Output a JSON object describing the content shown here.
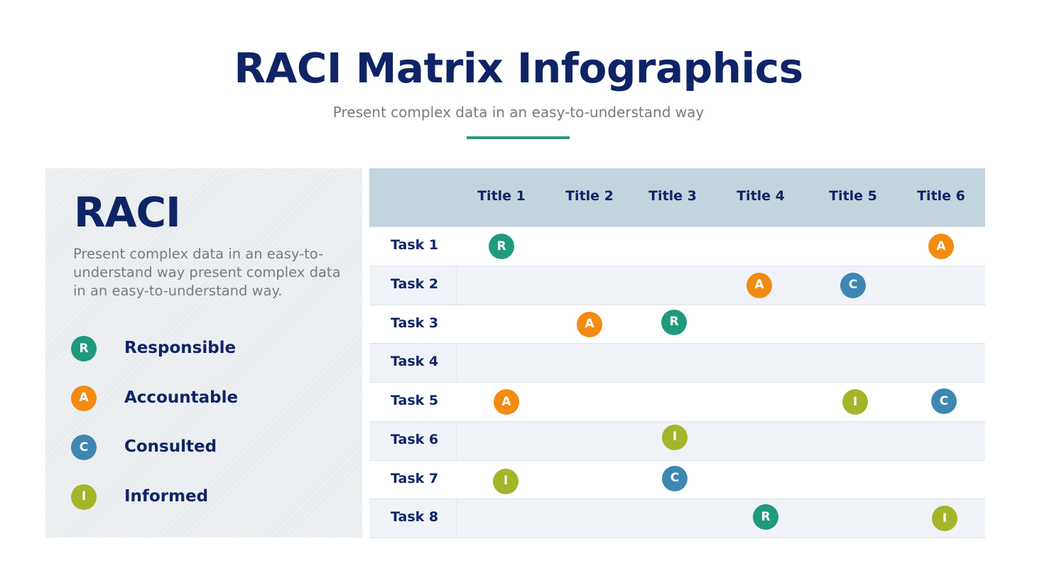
{
  "header": {
    "title": "RACI Matrix Infographics",
    "subtitle": "Present complex data in an easy-to-understand way",
    "accent_color": "#2a9a7e"
  },
  "left_panel": {
    "heading": "RACI",
    "description": "Present complex data in an easy-to-understand way present complex data in an easy-to-understand way.",
    "legend": [
      {
        "code": "R",
        "label": "Responsible",
        "color": "#1f9a7d"
      },
      {
        "code": "A",
        "label": "Accountable",
        "color": "#f28b12"
      },
      {
        "code": "C",
        "label": "Consulted",
        "color": "#3e87b2"
      },
      {
        "code": "I",
        "label": "Informed",
        "color": "#a4b52a"
      }
    ]
  },
  "matrix": {
    "columns": [
      "Title 1",
      "Title 2",
      "Title 3",
      "Title 4",
      "Title 5",
      "Title 6"
    ],
    "rows": [
      {
        "task": "Task 1",
        "cells": [
          "R",
          "",
          "",
          "",
          "",
          "A"
        ]
      },
      {
        "task": "Task 2",
        "cells": [
          "",
          "",
          "",
          "A",
          "C",
          ""
        ]
      },
      {
        "task": "Task 3",
        "cells": [
          "",
          "A",
          "R",
          "",
          "",
          ""
        ]
      },
      {
        "task": "Task 4",
        "cells": [
          "",
          "",
          "",
          "",
          "",
          ""
        ]
      },
      {
        "task": "Task 5",
        "cells": [
          "A",
          "",
          "",
          "",
          "I",
          "C"
        ]
      },
      {
        "task": "Task 6",
        "cells": [
          "",
          "",
          "I",
          "",
          "",
          ""
        ]
      },
      {
        "task": "Task 7",
        "cells": [
          "I",
          "",
          "C",
          "",
          "",
          ""
        ]
      },
      {
        "task": "Task 8",
        "cells": [
          "",
          "",
          "",
          "R",
          "",
          "I"
        ]
      }
    ]
  },
  "chart_data": {
    "type": "table",
    "title": "RACI Matrix Infographics",
    "columns": [
      "Task",
      "Title 1",
      "Title 2",
      "Title 3",
      "Title 4",
      "Title 5",
      "Title 6"
    ],
    "rows": [
      [
        "Task 1",
        "R",
        "",
        "",
        "",
        "",
        "A"
      ],
      [
        "Task 2",
        "",
        "",
        "",
        "A",
        "C",
        ""
      ],
      [
        "Task 3",
        "",
        "A",
        "R",
        "",
        "",
        ""
      ],
      [
        "Task 4",
        "",
        "",
        "",
        "",
        "",
        ""
      ],
      [
        "Task 5",
        "A",
        "",
        "",
        "",
        "I",
        "C"
      ],
      [
        "Task 6",
        "",
        "",
        "I",
        "",
        "",
        ""
      ],
      [
        "Task 7",
        "I",
        "",
        "C",
        "",
        "",
        ""
      ],
      [
        "Task 8",
        "",
        "",
        "",
        "R",
        "",
        "I"
      ]
    ],
    "legend": {
      "R": "Responsible",
      "A": "Accountable",
      "C": "Consulted",
      "I": "Informed"
    }
  }
}
